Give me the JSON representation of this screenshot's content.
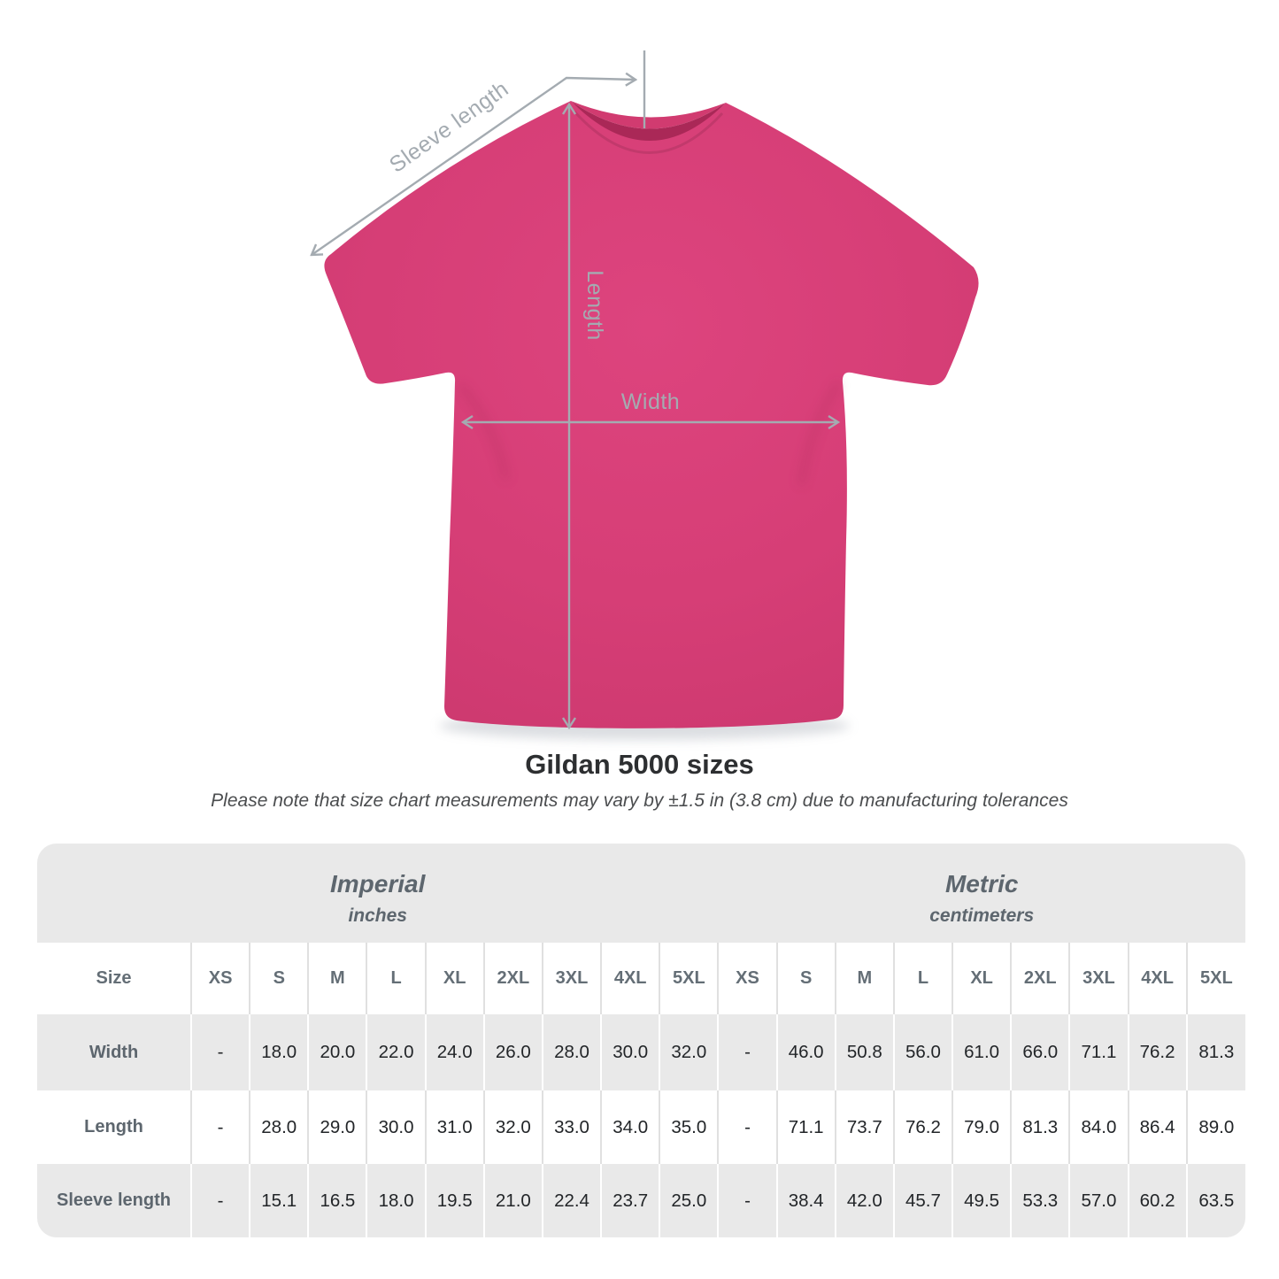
{
  "diagram": {
    "labels": {
      "sleeve_length": "Sleeve length",
      "length": "Length",
      "width": "Width"
    },
    "shirt_color": "#d73f75",
    "collar_shadow_color": "#aa2857",
    "arrow_color": "#a4abb1"
  },
  "heading": {
    "title": "Gildan 5000 sizes",
    "disclaimer": "Please note that size chart measurements may vary by ±1.5 in (3.8 cm) due to manufacturing tolerances"
  },
  "table": {
    "groups": [
      {
        "label": "Imperial",
        "sublabel": "inches"
      },
      {
        "label": "Metric",
        "sublabel": "centimeters"
      }
    ],
    "size_header": "Size",
    "columns": [
      "XS",
      "S",
      "M",
      "L",
      "XL",
      "2XL",
      "3XL",
      "4XL",
      "5XL",
      "XS",
      "S",
      "M",
      "L",
      "XL",
      "2XL",
      "3XL",
      "4XL",
      "5XL"
    ],
    "rows": [
      {
        "label": "Width",
        "values": [
          "-",
          "18.0",
          "20.0",
          "22.0",
          "24.0",
          "26.0",
          "28.0",
          "30.0",
          "32.0",
          "-",
          "46.0",
          "50.8",
          "56.0",
          "61.0",
          "66.0",
          "71.1",
          "76.2",
          "81.3"
        ]
      },
      {
        "label": "Length",
        "values": [
          "-",
          "28.0",
          "29.0",
          "30.0",
          "31.0",
          "32.0",
          "33.0",
          "34.0",
          "35.0",
          "-",
          "71.1",
          "73.7",
          "76.2",
          "79.0",
          "81.3",
          "84.0",
          "86.4",
          "89.0"
        ]
      },
      {
        "label": "Sleeve length",
        "values": [
          "-",
          "15.1",
          "16.5",
          "18.0",
          "19.5",
          "21.0",
          "22.4",
          "23.7",
          "25.0",
          "-",
          "38.4",
          "42.0",
          "45.7",
          "49.5",
          "53.3",
          "57.0",
          "60.2",
          "63.5"
        ]
      }
    ]
  }
}
